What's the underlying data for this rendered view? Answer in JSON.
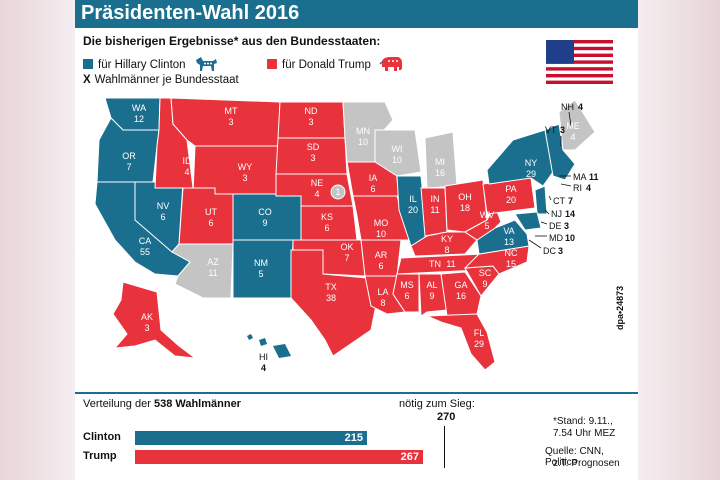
{
  "title": "Präsidenten-Wahl 2016",
  "subtitle": "Die bisherigen Ergebnisse* aus den Bundesstaaten:",
  "legend": {
    "clinton": "für Hillary Clinton",
    "trump": "für Donald Trump",
    "x_mark": "X",
    "electors": "Wahlmänner je Bundesstaat"
  },
  "colors": {
    "clinton": "#1b6f8e",
    "trump": "#e8323c",
    "undecided": "#c4c4c4"
  },
  "states": {
    "wa": {
      "abbr": "WA",
      "ev": "12"
    },
    "or": {
      "abbr": "OR",
      "ev": "7"
    },
    "ca": {
      "abbr": "CA",
      "ev": "55"
    },
    "nv": {
      "abbr": "NV",
      "ev": "6"
    },
    "id": {
      "abbr": "ID",
      "ev": "4"
    },
    "mt": {
      "abbr": "MT",
      "ev": "3"
    },
    "wy": {
      "abbr": "WY",
      "ev": "3"
    },
    "ut": {
      "abbr": "UT",
      "ev": "6"
    },
    "az": {
      "abbr": "AZ",
      "ev": "11"
    },
    "co": {
      "abbr": "CO",
      "ev": "9"
    },
    "nm": {
      "abbr": "NM",
      "ev": "5"
    },
    "nd": {
      "abbr": "ND",
      "ev": "3"
    },
    "sd": {
      "abbr": "SD",
      "ev": "3"
    },
    "ne": {
      "abbr": "NE",
      "ev": "4"
    },
    "ne_split": "1",
    "ks": {
      "abbr": "KS",
      "ev": "6"
    },
    "ok": {
      "abbr": "OK",
      "ev": "7"
    },
    "tx": {
      "abbr": "TX",
      "ev": "38"
    },
    "mn": {
      "abbr": "MN",
      "ev": "10"
    },
    "ia": {
      "abbr": "IA",
      "ev": "6"
    },
    "mo": {
      "abbr": "MO",
      "ev": "10"
    },
    "ar": {
      "abbr": "AR",
      "ev": "6"
    },
    "la": {
      "abbr": "LA",
      "ev": "8"
    },
    "wi": {
      "abbr": "WI",
      "ev": "10"
    },
    "il": {
      "abbr": "IL",
      "ev": "20"
    },
    "mi": {
      "abbr": "MI",
      "ev": "16"
    },
    "in": {
      "abbr": "IN",
      "ev": "11"
    },
    "oh": {
      "abbr": "OH",
      "ev": "18"
    },
    "ky": {
      "abbr": "KY",
      "ev": "8"
    },
    "tn": {
      "abbr": "TN",
      "ev": "11"
    },
    "ms": {
      "abbr": "MS",
      "ev": "6"
    },
    "al": {
      "abbr": "AL",
      "ev": "9"
    },
    "ga": {
      "abbr": "GA",
      "ev": "16"
    },
    "fl": {
      "abbr": "FL",
      "ev": "29"
    },
    "sc": {
      "abbr": "SC",
      "ev": "9"
    },
    "nc": {
      "abbr": "NC",
      "ev": "15"
    },
    "va": {
      "abbr": "VA",
      "ev": "13"
    },
    "wv": {
      "abbr": "WV",
      "ev": "5"
    },
    "pa": {
      "abbr": "PA",
      "ev": "20"
    },
    "ny": {
      "abbr": "NY",
      "ev": "29"
    },
    "me": {
      "abbr": "ME",
      "ev": "4"
    },
    "ak": {
      "abbr": "AK",
      "ev": "3"
    },
    "hi": {
      "abbr": "HI",
      "ev": "4"
    }
  },
  "callouts": {
    "nh": {
      "abbr": "NH",
      "ev": "4"
    },
    "vt": {
      "abbr": "VT",
      "ev": "3"
    },
    "ma": {
      "abbr": "MA",
      "ev": "11"
    },
    "ri": {
      "abbr": "RI",
      "ev": "4"
    },
    "ct": {
      "abbr": "CT",
      "ev": "7"
    },
    "nj": {
      "abbr": "NJ",
      "ev": "14"
    },
    "de": {
      "abbr": "DE",
      "ev": "3"
    },
    "md": {
      "abbr": "MD",
      "ev": "10"
    },
    "dc": {
      "abbr": "DC",
      "ev": "3"
    }
  },
  "credit": "dpa•24873",
  "distribution": {
    "label_prefix": "Verteilung der",
    "label_bold": "538 Wahlmänner",
    "needed_label": "nötig zum Sieg:",
    "needed_value": "270",
    "total": 538
  },
  "results": [
    {
      "name": "Clinton",
      "value": 215
    },
    {
      "name": "Trump",
      "value": 267
    }
  ],
  "footnote": {
    "stand": "*Stand: 9.11.,",
    "time": "7.54 Uhr MEZ",
    "source1": "Quelle: CNN, Politico",
    "source2": "z.T. Prognosen"
  }
}
